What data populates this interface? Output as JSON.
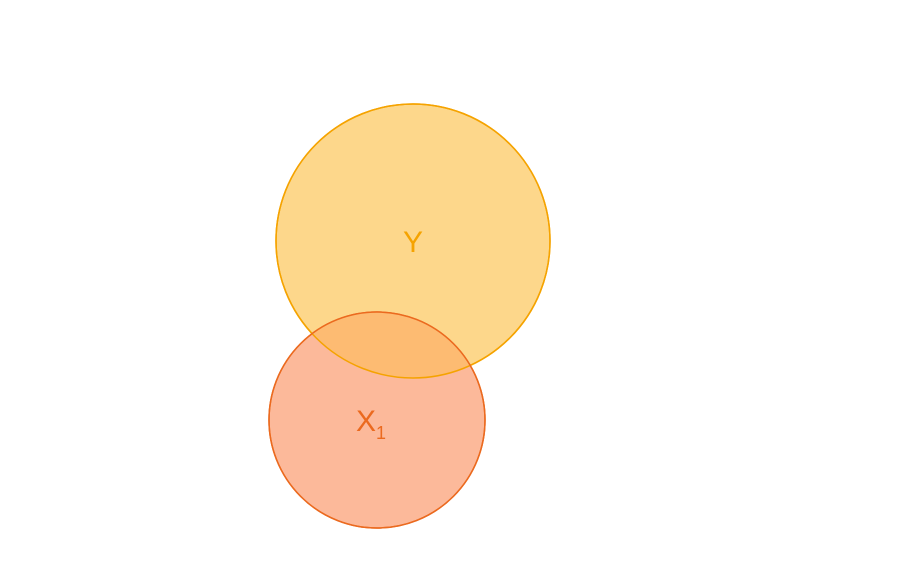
{
  "diagram": {
    "type": "venn",
    "sets": [
      {
        "id": "y",
        "label": "Y",
        "subscript": "",
        "fill": "#FDD78B",
        "stroke": "#F5A300",
        "text_color": "#F5A300"
      },
      {
        "id": "x1",
        "label": "X",
        "subscript": "1",
        "fill": "#FCB99A",
        "stroke": "#EB6A1F",
        "text_color": "#EB6A1F"
      }
    ],
    "overlaps": [
      {
        "sets": [
          "y",
          "x1"
        ],
        "fill": "#FDBB72"
      }
    ]
  }
}
